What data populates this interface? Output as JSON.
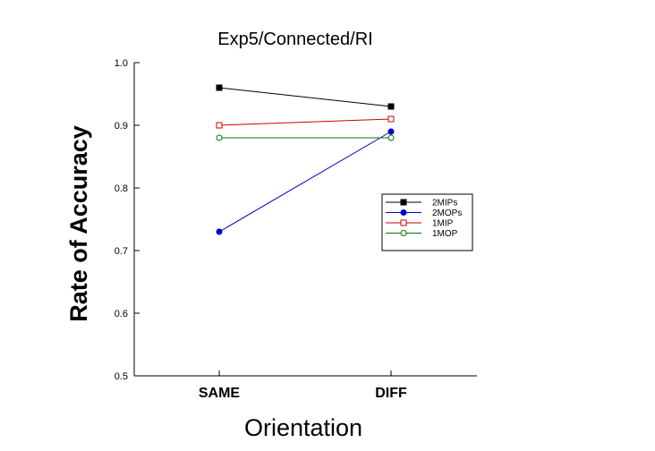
{
  "chart_data": {
    "type": "line",
    "title": "Exp5/Connected/RI",
    "xlabel": "Orientation",
    "ylabel": "Rate of Accuracy",
    "categories": [
      "SAME",
      "DIFF"
    ],
    "ylim": [
      0.5,
      1.0
    ],
    "yticks": [
      "0.5",
      "0.6",
      "0.7",
      "0.8",
      "0.9",
      "1.0"
    ],
    "grid": false,
    "legend_position": "right",
    "series": [
      {
        "name": "2MIPs",
        "values": [
          0.96,
          0.93
        ],
        "color": "#000000",
        "marker": "square-filled"
      },
      {
        "name": "2MOPs",
        "values": [
          0.73,
          0.89
        ],
        "color": "#0000cc",
        "marker": "circle-filled"
      },
      {
        "name": "1MIP",
        "values": [
          0.9,
          0.91
        ],
        "color": "#cc0000",
        "marker": "square-open"
      },
      {
        "name": "1MOP",
        "values": [
          0.88,
          0.88
        ],
        "color": "#007a00",
        "marker": "circle-open"
      }
    ]
  }
}
